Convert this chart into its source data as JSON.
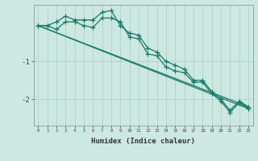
{
  "xlabel": "Humidex (Indice chaleur)",
  "background_color": "#cce8e0",
  "grid_color": "#aad4cc",
  "line_color": "#1a7a6a",
  "x_values": [
    0,
    1,
    2,
    3,
    4,
    5,
    6,
    7,
    8,
    9,
    10,
    11,
    12,
    13,
    14,
    15,
    16,
    17,
    18,
    19,
    20,
    21,
    22,
    23
  ],
  "line1": [
    -0.05,
    -0.05,
    -0.15,
    0.05,
    0.05,
    -0.05,
    -0.1,
    0.15,
    0.15,
    0.05,
    -0.35,
    -0.4,
    -0.8,
    -0.85,
    -1.15,
    -1.25,
    -1.3,
    -1.55,
    -1.55,
    -1.85,
    -2.05,
    -2.35,
    -2.1,
    -2.25
  ],
  "line2": [
    -0.05,
    -0.05,
    0.05,
    0.2,
    0.1,
    0.1,
    0.1,
    0.3,
    0.35,
    -0.05,
    -0.25,
    -0.3,
    -0.65,
    -0.75,
    -1.0,
    -1.1,
    -1.2,
    -1.5,
    -1.5,
    -1.8,
    -2.0,
    -2.3,
    -2.05,
    -2.2
  ],
  "line3_x": [
    0,
    23
  ],
  "line3_y": [
    -0.05,
    -2.25
  ],
  "line4_x": [
    0,
    23
  ],
  "line4_y": [
    -0.05,
    -2.2
  ],
  "ylim": [
    -2.7,
    0.5
  ],
  "xlim": [
    -0.5,
    23.5
  ]
}
